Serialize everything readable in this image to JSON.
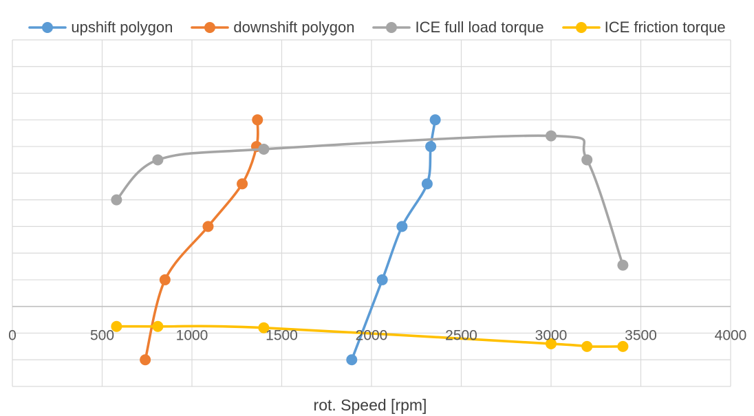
{
  "chart_data": {
    "type": "line",
    "smooth": true,
    "title": "",
    "xlabel": "rot. Speed [rpm]",
    "ylabel": "",
    "xlim": [
      0,
      4000
    ],
    "x_ticks": [
      0,
      500,
      1000,
      1500,
      2000,
      2500,
      3000,
      3500,
      4000
    ],
    "ylim": [
      -3,
      10
    ],
    "y_tick_labels_visible": false,
    "grid": true,
    "legend": "top",
    "series": [
      {
        "name": "upshift polygon",
        "color": "#5B9BD5",
        "points": [
          [
            1890,
            -2
          ],
          [
            2060,
            1
          ],
          [
            2170,
            3
          ],
          [
            2310,
            4.6
          ],
          [
            2330,
            6
          ],
          [
            2355,
            7
          ]
        ]
      },
      {
        "name": "downshift polygon",
        "color": "#ED7D31",
        "points": [
          [
            740,
            -2
          ],
          [
            850,
            1
          ],
          [
            1090,
            3
          ],
          [
            1280,
            4.6
          ],
          [
            1360,
            6
          ],
          [
            1365,
            7
          ]
        ]
      },
      {
        "name": "ICE full load torque",
        "color": "#A5A5A5",
        "points": [
          [
            580,
            4
          ],
          [
            810,
            5.5
          ],
          [
            1400,
            5.9
          ],
          [
            3000,
            6.4
          ],
          [
            3200,
            5.5
          ],
          [
            3400,
            1.55
          ]
        ]
      },
      {
        "name": "ICE friction torque",
        "color": "#FFC000",
        "points": [
          [
            580,
            -0.75
          ],
          [
            810,
            -0.75
          ],
          [
            1400,
            -0.8
          ],
          [
            3000,
            -1.4
          ],
          [
            3200,
            -1.5
          ],
          [
            3400,
            -1.5
          ]
        ]
      }
    ]
  }
}
